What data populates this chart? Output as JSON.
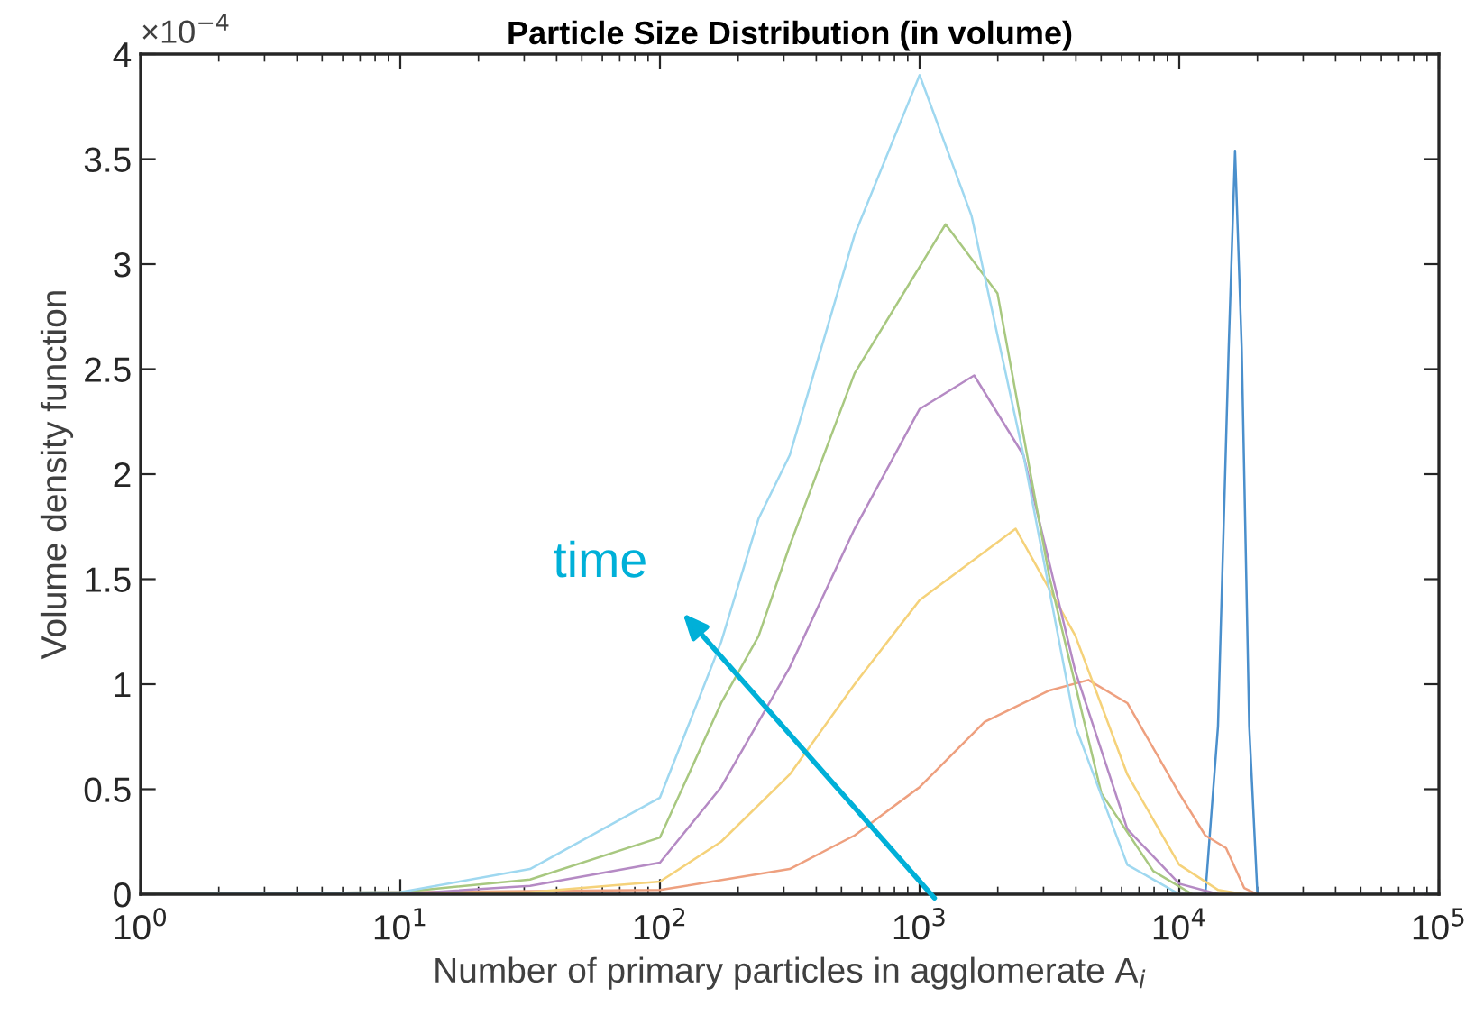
{
  "chart_data": {
    "type": "line",
    "title": "Particle Size Distribution (in volume)",
    "xlabel": "Number of primary particles in agglomerate A$_{i}$",
    "ylabel": "Volume density function",
    "log": "x",
    "xlim": [
      1,
      100000
    ],
    "ylim": [
      0,
      4
    ],
    "xticks": [
      {
        "value": 1,
        "label": "10$^{0}$"
      },
      {
        "value": 10,
        "label": "10$^{1}$"
      },
      {
        "value": 100,
        "label": "10$^{2}$"
      },
      {
        "value": 1000,
        "label": "10$^{3}$"
      },
      {
        "value": 10000,
        "label": "10$^{4}$"
      },
      {
        "value": 100000,
        "label": "10$^{5}$"
      }
    ],
    "yticks": [
      0,
      0.5,
      1,
      1.5,
      2,
      2.5,
      3,
      3.5,
      4
    ],
    "grid": false,
    "marker": "none",
    "line_style": "solid",
    "annotations": [
      "×10$^{−4}$",
      "time"
    ],
    "series": [
      {
        "color": "#4a8fcc",
        "x": [
          1,
          12600,
          14100,
          15500,
          16400,
          17400,
          18600,
          20000,
          100000
        ],
        "values": [
          0,
          0,
          0.8,
          2.6,
          3.54,
          2.6,
          0.8,
          0,
          0
        ]
      },
      {
        "color": "#eea07f",
        "x": [
          1,
          100,
          316,
          562,
          1000,
          1778,
          3162,
          4467,
          6310,
          10000,
          12590,
          15140,
          17780,
          19950
        ],
        "values": [
          0,
          0.02,
          0.12,
          0.28,
          0.51,
          0.82,
          0.97,
          1.02,
          0.91,
          0.48,
          0.28,
          0.22,
          0.03,
          0
        ]
      },
      {
        "color": "#f5d27a",
        "x": [
          1,
          31.6,
          100,
          172,
          316,
          562,
          1000,
          2344,
          3981,
          6310,
          10000,
          14130,
          17780
        ],
        "values": [
          0,
          0.01,
          0.06,
          0.25,
          0.57,
          1.0,
          1.4,
          1.74,
          1.23,
          0.57,
          0.14,
          0.02,
          0
        ]
      },
      {
        "color": "#b58ac4",
        "x": [
          1,
          10,
          31.6,
          100,
          172,
          316,
          562,
          1000,
          1622,
          2512,
          3981,
          6310,
          10000,
          14130
        ],
        "values": [
          0,
          0,
          0.04,
          0.15,
          0.51,
          1.08,
          1.74,
          2.31,
          2.47,
          2.09,
          1.06,
          0.31,
          0.05,
          0
        ]
      },
      {
        "color": "#a8c880",
        "x": [
          1,
          10,
          31.6,
          100,
          172,
          240,
          316,
          562,
          1259,
          1995,
          3162,
          5012,
          7943,
          11220
        ],
        "values": [
          0,
          0.01,
          0.07,
          0.27,
          0.91,
          1.23,
          1.66,
          2.48,
          3.19,
          2.86,
          1.51,
          0.48,
          0.11,
          0
        ]
      },
      {
        "color": "#9fd8f0",
        "x": [
          1,
          10,
          31.6,
          100,
          172,
          240,
          316,
          562,
          1000,
          1585,
          2512,
          3981,
          6310,
          10000
        ],
        "values": [
          0,
          0.01,
          0.12,
          0.46,
          1.2,
          1.79,
          2.09,
          3.14,
          3.9,
          3.23,
          2.09,
          0.8,
          0.14,
          0
        ]
      }
    ]
  }
}
